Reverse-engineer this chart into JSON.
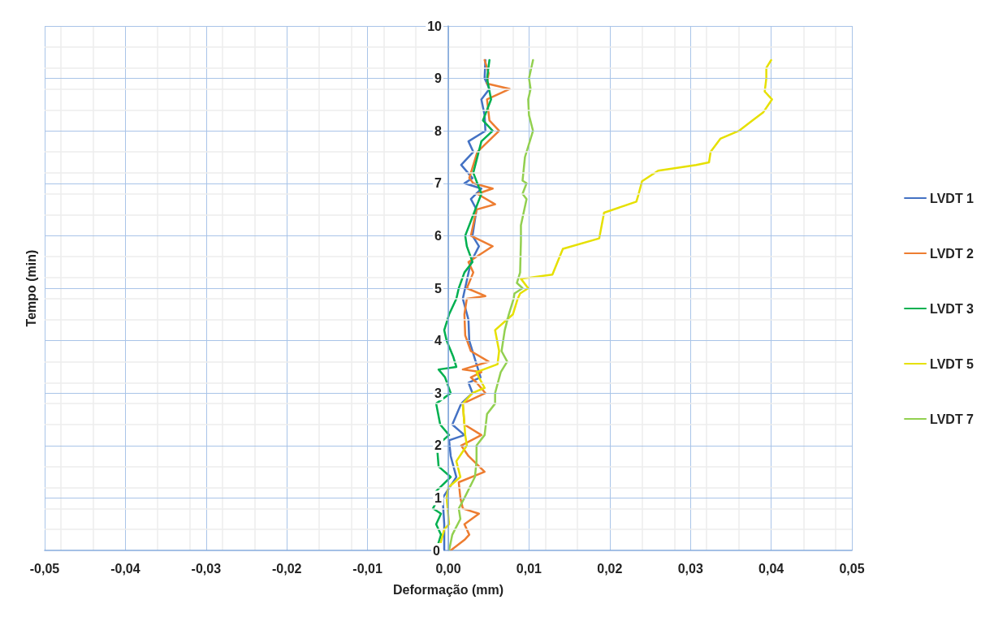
{
  "chart_data": {
    "type": "line",
    "xlabel": "Deformação (mm)",
    "ylabel": "Tempo (min)",
    "xlim": [
      -0.05,
      0.05
    ],
    "xticks": [
      {
        "value": -0.05,
        "label": "-0,05"
      },
      {
        "value": -0.04,
        "label": "-0,04"
      },
      {
        "value": -0.03,
        "label": "-0,03"
      },
      {
        "value": -0.02,
        "label": "-0,02"
      },
      {
        "value": -0.01,
        "label": "-0,01"
      },
      {
        "value": 0,
        "label": "0,00"
      },
      {
        "value": 0.01,
        "label": "0,01"
      },
      {
        "value": 0.02,
        "label": "0,02"
      },
      {
        "value": 0.03,
        "label": "0,03"
      },
      {
        "value": 0.04,
        "label": "0,04"
      },
      {
        "value": 0.05,
        "label": "0,05"
      }
    ],
    "ylim": [
      0,
      10
    ],
    "yticks": [
      0,
      1,
      2,
      3,
      4,
      5,
      6,
      7,
      8,
      9,
      10
    ],
    "grid": true,
    "legend": "right",
    "marker": "none",
    "line_style": "solid",
    "series": [
      {
        "name": "LVDT 1",
        "color": "#4472c4",
        "x": [
          -0.0005,
          -0.0005,
          -0.0007,
          0.001,
          0.0003,
          0.0001,
          0.002,
          0.0005,
          0.0016,
          0.003,
          0.0025,
          0.004,
          0.0036,
          0.0026,
          0.0025,
          0.0018,
          0.0028,
          0.0038,
          0.003,
          0.0035,
          0.0028,
          0.0041,
          0.002,
          0.003,
          0.0016,
          0.0031,
          0.0025,
          0.0046,
          0.0045,
          0.0041,
          0.0051,
          0.0045,
          0.0046
        ],
        "values": [
          0,
          0.5,
          1,
          1.4,
          1.8,
          2.1,
          2.2,
          2.4,
          2.8,
          3,
          3.2,
          3.3,
          3.5,
          4,
          4.4,
          4.8,
          5.5,
          5.8,
          6,
          6.5,
          6.7,
          6.9,
          7,
          7.1,
          7.35,
          7.6,
          7.8,
          8,
          8.3,
          8.6,
          8.8,
          9,
          9.35
        ]
      },
      {
        "name": "LVDT 2",
        "color": "#ed7d31",
        "x": [
          0.0003,
          0.002,
          0.0026,
          0.002,
          0.0038,
          0.0018,
          0.0015,
          0.0013,
          0.0045,
          0.0025,
          0.0016,
          0.0041,
          0.002,
          0.0018,
          0.0046,
          0.0035,
          0.0028,
          0.0041,
          0.0018,
          0.005,
          0.0028,
          0.0021,
          0.002,
          0.0023,
          0.0046,
          0.0023,
          0.0031,
          0.0025,
          0.0055,
          0.0028,
          0.0035,
          0.0058,
          0.0036,
          0.0055,
          0.0031,
          0.0026,
          0.0036,
          0.0063,
          0.0051,
          0.0048,
          0.0076,
          0.0048,
          0.005,
          0.0045
        ],
        "values": [
          0,
          0.2,
          0.3,
          0.5,
          0.7,
          0.8,
          1,
          1.3,
          1.5,
          1.8,
          2,
          2.2,
          2.4,
          2.8,
          3,
          3.2,
          3.3,
          3.4,
          3.45,
          3.6,
          3.8,
          4.1,
          4.5,
          4.8,
          4.85,
          5,
          5.3,
          5.5,
          5.8,
          6,
          6.5,
          6.6,
          6.8,
          6.9,
          7,
          7.1,
          7.6,
          8,
          8.2,
          8.6,
          8.8,
          8.9,
          9.1,
          9.35
        ]
      },
      {
        "name": "LVDT 3",
        "color": "#00b050",
        "x": [
          -0.0015,
          -0.0009,
          -0.0015,
          -0.0009,
          -0.0019,
          -0.0012,
          -0.0017,
          0.0003,
          -0.0012,
          -0.0014,
          0.0001,
          -0.001,
          -0.0015,
          0.0003,
          -0.0004,
          -0.0012,
          0.001,
          0.0006,
          -0.0002,
          -0.0005,
          0.0001,
          0.001,
          0.0013,
          0.002,
          0.003,
          0.0023,
          0.0021,
          0.0031,
          0.0041,
          0.0031,
          0.0041,
          0.0055,
          0.0043,
          0.0053,
          0.0048,
          0.0051
        ],
        "values": [
          0,
          0.3,
          0.5,
          0.7,
          0.8,
          1,
          1.1,
          1.4,
          1.6,
          2,
          2.2,
          2.4,
          2.8,
          3,
          3.3,
          3.45,
          3.5,
          3.7,
          4,
          4.2,
          4.5,
          4.8,
          5,
          5.3,
          5.5,
          5.8,
          6,
          6.4,
          6.8,
          7.2,
          7.8,
          8,
          8.2,
          8.6,
          9,
          9.35
        ]
      },
      {
        "name": "LVDT 5",
        "color": "#e6e000",
        "x": [
          -0.0012,
          -0.0005,
          0.0001,
          -0.0002,
          0,
          0.0015,
          0.001,
          0.0023,
          0.0021,
          0.0018,
          0.003,
          0.0045,
          0.0038,
          0.0035,
          0.0061,
          0.0063,
          0.0058,
          0.008,
          0.0086,
          0.0089,
          0.0099,
          0.009,
          0.0129,
          0.0139,
          0.0142,
          0.0187,
          0.0193,
          0.0233,
          0.0235,
          0.024,
          0.026,
          0.0307,
          0.0323,
          0.0325,
          0.0337,
          0.036,
          0.0377,
          0.039,
          0.0401,
          0.0392,
          0.0394,
          0.0394,
          0.04
        ],
        "values": [
          0,
          0.4,
          0.5,
          1,
          1.2,
          1.4,
          1.7,
          2,
          2.2,
          2.8,
          3,
          3.1,
          3.3,
          3.4,
          3.55,
          3.8,
          4.2,
          4.5,
          4.8,
          4.9,
          5,
          5.18,
          5.26,
          5.64,
          5.75,
          5.95,
          6.44,
          6.65,
          6.75,
          7.04,
          7.24,
          7.35,
          7.4,
          7.6,
          7.85,
          8,
          8.2,
          8.35,
          8.6,
          8.75,
          9,
          9.2,
          9.35
        ]
      },
      {
        "name": "LVDT 7",
        "color": "#92d050",
        "x": [
          0.0001,
          0.0005,
          0.0015,
          0.0013,
          0.002,
          0.0033,
          0.0035,
          0.0035,
          0.0045,
          0.0048,
          0.0058,
          0.0058,
          0.0065,
          0.0073,
          0.0066,
          0.007,
          0.0075,
          0.0081,
          0.0082,
          0.0092,
          0.0085,
          0.0089,
          0.009,
          0.009,
          0.0097,
          0.0092,
          0.0097,
          0.0092,
          0.0095,
          0.0105,
          0.01,
          0.0099,
          0.0102,
          0.01,
          0.0105
        ],
        "values": [
          0,
          0.3,
          0.6,
          0.8,
          1,
          1.4,
          1.7,
          2,
          2.2,
          2.6,
          2.8,
          3,
          3.4,
          3.6,
          3.8,
          4.2,
          4.5,
          4.8,
          4.9,
          5,
          5.1,
          5.3,
          5.9,
          6.2,
          6.7,
          6.8,
          7,
          7.05,
          7.5,
          8,
          8.3,
          8.6,
          8.8,
          9,
          9.35
        ]
      }
    ]
  }
}
